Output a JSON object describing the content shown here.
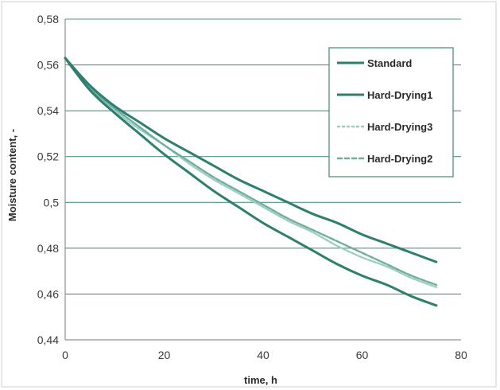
{
  "chart_data": {
    "type": "line",
    "title": "",
    "xlabel": "time, h",
    "ylabel": "Moisture content, -",
    "xlim": [
      0,
      80
    ],
    "ylim": [
      0.44,
      0.58
    ],
    "xticks": [
      0,
      20,
      40,
      60,
      80
    ],
    "xtick_labels": [
      "0",
      "20",
      "40",
      "60",
      "80"
    ],
    "yticks": [
      0.44,
      0.46,
      0.48,
      0.5,
      0.52,
      0.54,
      0.56,
      0.58
    ],
    "ytick_labels": [
      "0,44",
      "0,46",
      "0,48",
      "0,5",
      "0,52",
      "0,54",
      "0,56",
      "0,58"
    ],
    "grid": "horizontal",
    "legend_position": "top-right",
    "x": [
      0,
      5,
      10,
      15,
      20,
      25,
      30,
      35,
      40,
      45,
      50,
      55,
      60,
      65,
      70,
      75
    ],
    "series": [
      {
        "name": "Standard",
        "color": "#2f7f6e",
        "style": "solid",
        "values": [
          0.563,
          0.549,
          0.539,
          0.53,
          0.521,
          0.513,
          0.505,
          0.498,
          0.491,
          0.485,
          0.479,
          0.473,
          0.468,
          0.464,
          0.459,
          0.455
        ]
      },
      {
        "name": "Hard-Drying1",
        "color": "#2f7f6e",
        "style": "solid",
        "values": [
          0.563,
          0.551,
          0.542,
          0.535,
          0.528,
          0.522,
          0.516,
          0.51,
          0.505,
          0.5,
          0.495,
          0.491,
          0.486,
          0.482,
          0.478,
          0.474
        ]
      },
      {
        "name": "Hard-Drying3",
        "color": "#9ecdc2",
        "style": "dashed",
        "values": [
          0.563,
          0.55,
          0.54,
          0.532,
          0.525,
          0.517,
          0.51,
          0.504,
          0.498,
          0.492,
          0.487,
          0.481,
          0.476,
          0.472,
          0.467,
          0.463
        ]
      },
      {
        "name": "Hard-Drying2",
        "color": "#6fae9f",
        "style": "dashed",
        "values": [
          0.563,
          0.55,
          0.541,
          0.533,
          0.525,
          0.518,
          0.511,
          0.505,
          0.499,
          0.493,
          0.488,
          0.483,
          0.478,
          0.473,
          0.468,
          0.464
        ]
      }
    ]
  }
}
